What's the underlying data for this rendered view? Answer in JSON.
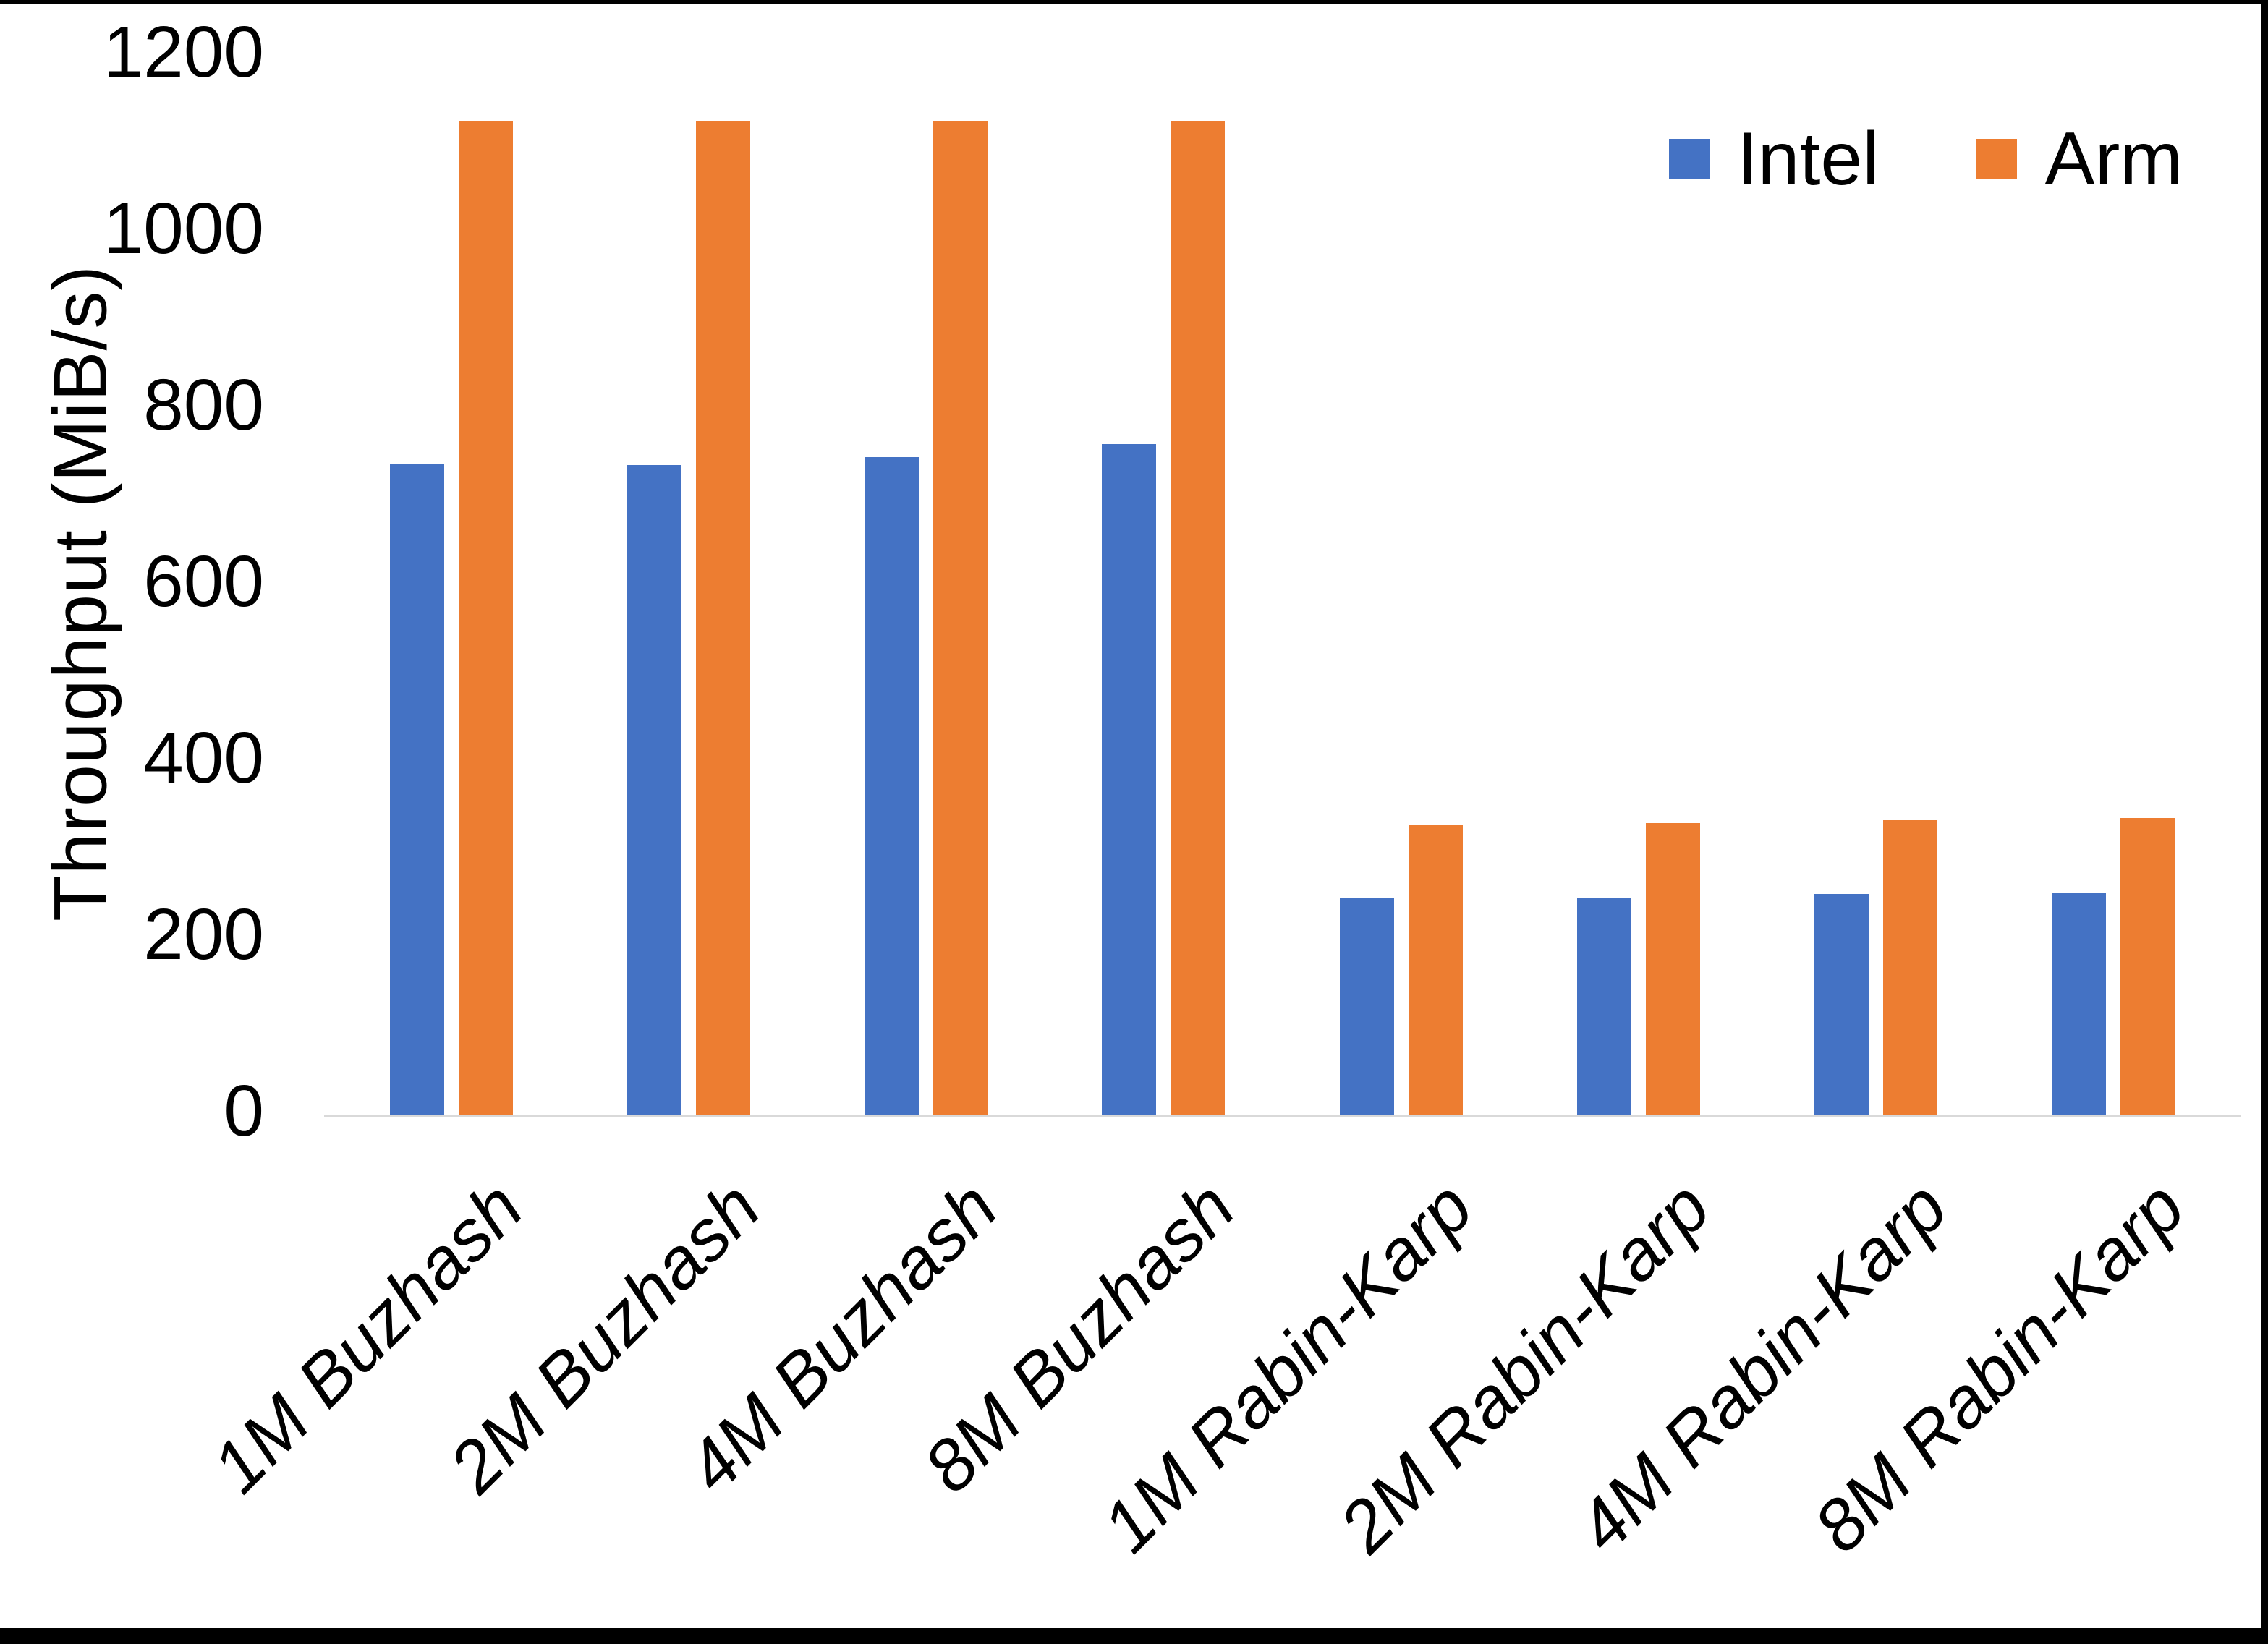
{
  "chart_data": {
    "type": "bar",
    "title": "",
    "ylabel": "Throughput (MiB/s)",
    "xlabel": "",
    "ylim": [
      0,
      1200
    ],
    "ytick_step": 200,
    "yticks": [
      "0",
      "200",
      "400",
      "600",
      "800",
      "1000",
      "1200"
    ],
    "grid": false,
    "legend_position": "top-right",
    "categories": [
      "1M Buzhash",
      "2M Buzhash",
      "4M Buzhash",
      "8M Buzhash",
      "1M Rabin-Karp",
      "2M Rabin-Karp",
      "4M Rabin-Karp",
      "8M Rabin-Karp"
    ],
    "series": [
      {
        "name": "Intel",
        "color": "#4472C4",
        "values": [
          737,
          736,
          745,
          760,
          246,
          246,
          250,
          252
        ]
      },
      {
        "name": "Arm",
        "color": "#ED7D31",
        "values": [
          1126,
          1126,
          1126,
          1126,
          328,
          330,
          334,
          336
        ]
      }
    ]
  },
  "colors": {
    "axis_line": "#d9d9d9",
    "text": "#000000",
    "background": "#ffffff",
    "border": "#000000"
  }
}
